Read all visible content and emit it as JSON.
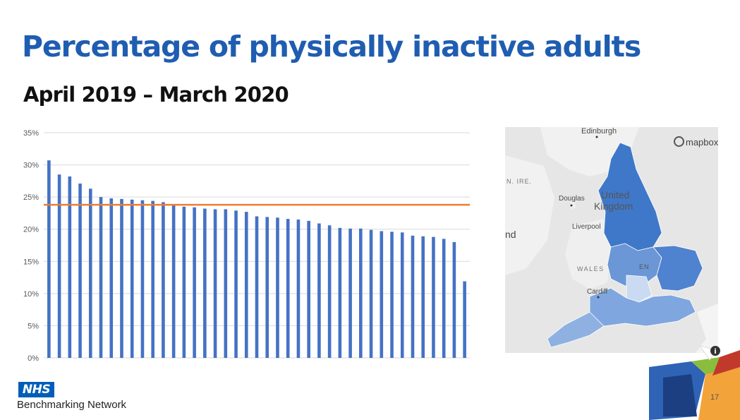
{
  "slide": {
    "title": "Percentage of physically inactive adults",
    "subtitle": "April 2019 – March 2020",
    "page_number": "17"
  },
  "branding": {
    "logo_text": "NHS",
    "organisation": "Benchmarking Network",
    "logo_color": "#005eb8"
  },
  "map": {
    "attribution": "mapbox",
    "labels": {
      "edinburgh": "Edinburgh",
      "n_ire": "N. IRE.",
      "douglas": "Douglas",
      "united": "United",
      "kingdom": "Kingdom",
      "liverpool": "Liverpool",
      "nd": "nd",
      "wales": "WALES",
      "en": "EN",
      "cardiff": "Cardiff"
    },
    "info_icon": "info-icon"
  },
  "chart_data": {
    "type": "bar",
    "title": "",
    "xlabel": "",
    "ylabel": "",
    "ylim": [
      0,
      35
    ],
    "y_ticks": [
      0,
      5,
      10,
      15,
      20,
      25,
      30,
      35
    ],
    "y_tick_labels": [
      "0%",
      "5%",
      "10%",
      "15%",
      "20%",
      "25%",
      "30%",
      "35%"
    ],
    "grid": true,
    "legend": "none",
    "bar_color": "#4472c4",
    "reference_color": "#ed7d31",
    "reference_value": 23.8,
    "series": [
      {
        "values": [
          30.7,
          28.5,
          28.2,
          27.1,
          26.3,
          25.0,
          24.8,
          24.7,
          24.6,
          24.5,
          24.4,
          24.2,
          23.9,
          23.5,
          23.4,
          23.2,
          23.1,
          23.1,
          22.9,
          22.7,
          22.0,
          21.9,
          21.8,
          21.6,
          21.5,
          21.3,
          20.9,
          20.6,
          20.2,
          20.1,
          20.1,
          19.9,
          19.7,
          19.6,
          19.5,
          19.0,
          18.9,
          18.8,
          18.5,
          18.0,
          11.9
        ]
      }
    ]
  }
}
